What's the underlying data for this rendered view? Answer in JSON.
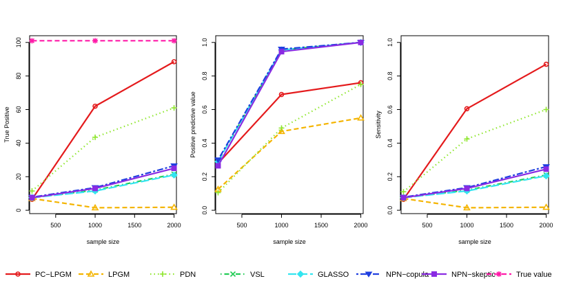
{
  "chart_data": [
    {
      "type": "line",
      "xlabel": "sample size",
      "ylabel": "True Positive",
      "xlim": [
        170,
        2030
      ],
      "ylim": [
        -2,
        104
      ],
      "xticks": [
        500,
        1000,
        1500,
        2000
      ],
      "yticks": [
        0,
        20,
        40,
        60,
        80,
        100
      ],
      "x": [
        200,
        1000,
        2000
      ],
      "series": [
        {
          "name": "PC−LPGM",
          "values": [
            6.5,
            62,
            88.5
          ]
        },
        {
          "name": "LPGM",
          "values": [
            7,
            1.5,
            1.8
          ]
        },
        {
          "name": "PDN",
          "values": [
            11.5,
            43.5,
            61
          ]
        },
        {
          "name": "VSL",
          "values": [
            7.5,
            12,
            21.5
          ]
        },
        {
          "name": "GLASSO",
          "values": [
            7.5,
            11.5,
            21
          ]
        },
        {
          "name": "NPN−copula",
          "values": [
            7.8,
            13.5,
            26.5
          ]
        },
        {
          "name": "NPN−skeptic",
          "values": [
            7.5,
            13,
            25
          ]
        },
        {
          "name": "True value",
          "values": [
            101,
            101,
            101
          ]
        }
      ]
    },
    {
      "type": "line",
      "xlabel": "sample size",
      "ylabel": "Positive predictive value",
      "xlim": [
        170,
        2030
      ],
      "ylim": [
        -0.02,
        1.04
      ],
      "xticks": [
        500,
        1000,
        1500,
        2000
      ],
      "yticks": [
        0.0,
        0.2,
        0.4,
        0.6,
        0.8,
        1.0
      ],
      "ytick_labels": [
        "0.0",
        "0.2",
        "0.4",
        "0.6",
        "0.8",
        "1.0"
      ],
      "x": [
        200,
        1000,
        2000
      ],
      "series": [
        {
          "name": "PC−LPGM",
          "values": [
            0.28,
            0.69,
            0.76
          ]
        },
        {
          "name": "LPGM",
          "values": [
            0.125,
            0.47,
            0.55
          ]
        },
        {
          "name": "PDN",
          "values": [
            0.105,
            0.49,
            0.75
          ]
        },
        {
          "name": "VSL",
          "values": [
            0.29,
            0.955,
            1.0
          ]
        },
        {
          "name": "GLASSO",
          "values": [
            0.29,
            0.955,
            1.0
          ]
        },
        {
          "name": "NPN−copula",
          "values": [
            0.3,
            0.96,
            1.0
          ]
        },
        {
          "name": "NPN−skeptic",
          "values": [
            0.265,
            0.945,
            1.0
          ]
        }
      ]
    },
    {
      "type": "line",
      "xlabel": "sample size",
      "ylabel": "Sensitivity",
      "xlim": [
        170,
        2030
      ],
      "ylim": [
        -0.02,
        1.04
      ],
      "xticks": [
        500,
        1000,
        1500,
        2000
      ],
      "yticks": [
        0.0,
        0.2,
        0.4,
        0.6,
        0.8,
        1.0
      ],
      "ytick_labels": [
        "0.0",
        "0.2",
        "0.4",
        "0.6",
        "0.8",
        "1.0"
      ],
      "x": [
        200,
        1000,
        2000
      ],
      "series": [
        {
          "name": "PC−LPGM",
          "values": [
            0.065,
            0.605,
            0.87
          ]
        },
        {
          "name": "LPGM",
          "values": [
            0.07,
            0.015,
            0.018
          ]
        },
        {
          "name": "PDN",
          "values": [
            0.11,
            0.425,
            0.6
          ]
        },
        {
          "name": "VSL",
          "values": [
            0.075,
            0.12,
            0.21
          ]
        },
        {
          "name": "GLASSO",
          "values": [
            0.075,
            0.115,
            0.205
          ]
        },
        {
          "name": "NPN−copula",
          "values": [
            0.078,
            0.135,
            0.26
          ]
        },
        {
          "name": "NPN−skeptic",
          "values": [
            0.075,
            0.13,
            0.245
          ]
        }
      ]
    }
  ],
  "legend": {
    "placement": "bottom",
    "entries": [
      {
        "label": "PC−LPGM",
        "color": "#e41a1c",
        "marker": "circle",
        "dash": "solid"
      },
      {
        "label": "LPGM",
        "color": "#f4b400",
        "marker": "triangle",
        "dash": "dashed"
      },
      {
        "label": "PDN",
        "color": "#8fe62e",
        "marker": "plus",
        "dash": "dotted"
      },
      {
        "label": "VSL",
        "color": "#22cc55",
        "marker": "cross",
        "dash": "dotdash"
      },
      {
        "label": "GLASSO",
        "color": "#33e5f0",
        "marker": "diamond",
        "dash": "longdash"
      },
      {
        "label": "NPN−copula",
        "color": "#1f3fe0",
        "marker": "triangle-down",
        "dash": "twodash"
      },
      {
        "label": "NPN−skeptic",
        "color": "#8a2be2",
        "marker": "square",
        "dash": "solid"
      },
      {
        "label": "True value",
        "color": "#ff1aa8",
        "marker": "star",
        "dash": "dashed"
      }
    ]
  }
}
